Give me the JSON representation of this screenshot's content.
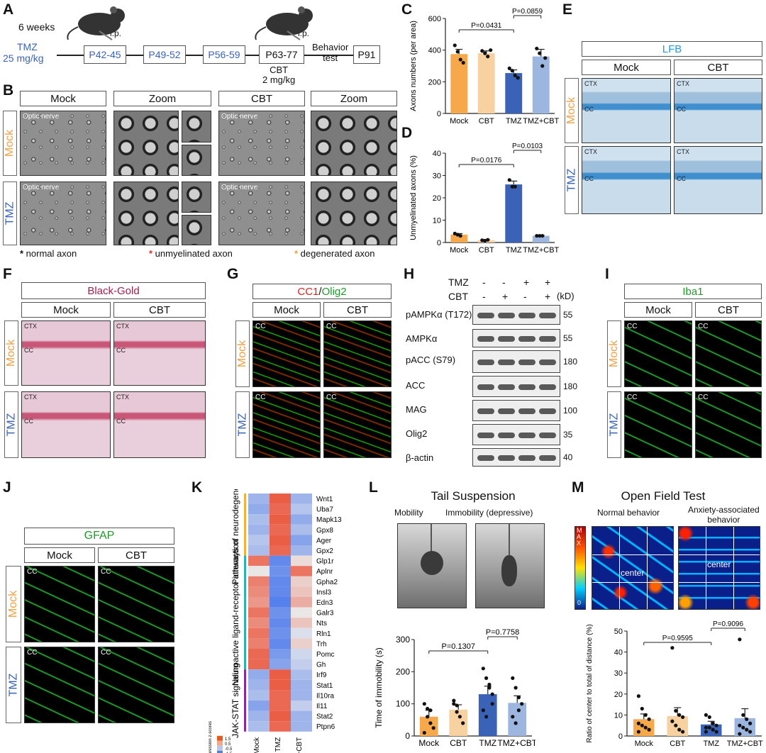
{
  "panels": {
    "A": "A",
    "B": "B",
    "C": "C",
    "D": "D",
    "E": "E",
    "F": "F",
    "G": "G",
    "H": "H",
    "I": "I",
    "J": "J",
    "K": "K",
    "L": "L",
    "M": "M"
  },
  "A": {
    "weeks": "6 weeks",
    "drug": "TMZ",
    "dose": "25 mg/kg",
    "ip1": "i.p.",
    "ip2": "i.p.",
    "periods": [
      "P42-45",
      "P49-52",
      "P56-59",
      "P63-77",
      "P91"
    ],
    "behavior": [
      "Behavior",
      "test"
    ],
    "cbt": [
      "CBT",
      "2 mg/kg"
    ]
  },
  "B": {
    "headers": [
      "Mock",
      "Zoom",
      "CBT",
      "Zoom"
    ],
    "rows": [
      "Mock",
      "TMZ"
    ],
    "optic": "Optic nerve",
    "legend": [
      "normal axon",
      "unmyelinated axon",
      "degenerated axon"
    ]
  },
  "C": {
    "chart_data": {
      "type": "bar",
      "categories": [
        "Mock",
        "CBT",
        "TMZ",
        "TMZ+CBT"
      ],
      "values": [
        375,
        380,
        255,
        360
      ],
      "errors": [
        30,
        15,
        20,
        45
      ],
      "points": [
        [
          430,
          390,
          340,
          320
        ],
        [
          395,
          380,
          360,
          400
        ],
        [
          285,
          270,
          240,
          225
        ],
        [
          410,
          380,
          300,
          350
        ]
      ],
      "ylabel": "Axons numbers (per area)",
      "ylim": [
        0,
        600
      ],
      "yticks": [
        "0",
        "200",
        "400",
        "600"
      ],
      "colors": [
        "#f7a84b",
        "#f7d2a0",
        "#3a63b8",
        "#9cb6e0"
      ],
      "pvalues": [
        {
          "from": 0,
          "to": 2,
          "text": "P=0.0431"
        },
        {
          "from": 2,
          "to": 3,
          "text": "P=0.0859"
        }
      ]
    }
  },
  "D": {
    "chart_data": {
      "type": "bar",
      "categories": [
        "Mock",
        "CBT",
        "TMZ",
        "TMZ+CBT"
      ],
      "values": [
        3.5,
        1,
        26,
        3
      ],
      "errors": [
        0.5,
        0.3,
        1.5,
        0.2
      ],
      "points": [
        [
          4,
          3.5,
          3
        ],
        [
          1,
          0.8,
          1.2
        ],
        [
          28,
          25,
          25
        ],
        [
          3,
          3,
          3
        ]
      ],
      "ylabel": "Unmyelinated axons (%)",
      "ylim": [
        0,
        40
      ],
      "yticks": [
        "0",
        "10",
        "20",
        "30",
        "40"
      ],
      "colors": [
        "#f7a84b",
        "#f7d2a0",
        "#3a63b8",
        "#9cb6e0"
      ],
      "pvalues": [
        {
          "from": 0,
          "to": 2,
          "text": "P=0.0176"
        },
        {
          "from": 2,
          "to": 3,
          "text": "P=0.0103"
        }
      ]
    }
  },
  "E": {
    "stain": "LFB",
    "cols": [
      "Mock",
      "CBT"
    ],
    "rows": [
      "Mock",
      "TMZ"
    ],
    "ctx": "CTX",
    "cc": "CC"
  },
  "F": {
    "stain": "Black-Gold",
    "cols": [
      "Mock",
      "CBT"
    ],
    "rows": [
      "Mock",
      "TMZ"
    ],
    "ctx": "CTX",
    "cc": "CC"
  },
  "G": {
    "stain_a": "CC1",
    "sep": "/",
    "stain_b": "Olig2",
    "cols": [
      "Mock",
      "CBT"
    ],
    "rows": [
      "Mock",
      "TMZ"
    ],
    "cc": "CC"
  },
  "H": {
    "tmz_label": "TMZ",
    "cbt_label": "CBT",
    "tmz_signs": [
      "-",
      "-",
      "+",
      "+"
    ],
    "cbt_signs": [
      "-",
      "+",
      "-",
      "+"
    ],
    "kd": "(kD)",
    "bands": [
      {
        "name": "pAMPKα (T172)",
        "kd": "55"
      },
      {
        "name": "AMPKα",
        "kd": "55"
      },
      {
        "name": "pACC (S79)",
        "kd": "180"
      },
      {
        "name": "ACC",
        "kd": "180"
      },
      {
        "name": "MAG",
        "kd": "100"
      },
      {
        "name": "Olig2",
        "kd": "35"
      },
      {
        "name": "β-actin",
        "kd": "40"
      }
    ]
  },
  "I": {
    "stain": "Iba1",
    "cols": [
      "Mock",
      "CBT"
    ],
    "rows": [
      "Mock",
      "TMZ"
    ],
    "cc": "CC"
  },
  "J": {
    "stain": "GFAP",
    "cols": [
      "Mock",
      "CBT"
    ],
    "rows": [
      "Mock",
      "TMZ"
    ],
    "cc": "CC"
  },
  "K": {
    "groups": [
      "Pathways of neurodegeneration",
      "Neuroactive ligand-receptor interaction",
      "JAK-STAT signaling"
    ],
    "genes": [
      "Wnt1",
      "Uba7",
      "Mapk13",
      "Gpx8",
      "Ager",
      "Gpx2",
      "Glp1r",
      "Aplnr",
      "Gpha2",
      "Insl3",
      "Edn3",
      "Galr3",
      "Nts",
      "Rln1",
      "Trh",
      "Pomc",
      "Gh",
      "Irf9",
      "Stat1",
      "Il10ra",
      "Il11",
      "Stat2",
      "Ptpn6"
    ],
    "columns": [
      "Mock",
      "TMZ",
      "TMZ+CBT"
    ],
    "legend_title": "Gene expression z-scores",
    "legend_ticks": [
      "1.5",
      "0.5",
      "-0.5",
      "-1.5"
    ],
    "chart_data": {
      "type": "heatmap",
      "rows": [
        "Wnt1",
        "Uba7",
        "Mapk13",
        "Gpx8",
        "Ager",
        "Gpx2",
        "Glp1r",
        "Aplnr",
        "Gpha2",
        "Insl3",
        "Edn3",
        "Galr3",
        "Nts",
        "Rln1",
        "Trh",
        "Pomc",
        "Gh",
        "Irf9",
        "Stat1",
        "Il10ra",
        "Il11",
        "Stat2",
        "Ptpn6"
      ],
      "cols": [
        "Mock",
        "TMZ",
        "TMZ+CBT"
      ],
      "values": [
        [
          -0.6,
          1.2,
          -0.6
        ],
        [
          -0.7,
          1.1,
          -0.4
        ],
        [
          -0.5,
          1.2,
          -0.7
        ],
        [
          -0.6,
          1.1,
          -0.5
        ],
        [
          -0.4,
          1.2,
          -0.8
        ],
        [
          -0.5,
          1.1,
          -0.6
        ],
        [
          1.0,
          -1.1,
          0.1
        ],
        [
          0.0,
          -1.0,
          1.0
        ],
        [
          0.9,
          -1.1,
          0.2
        ],
        [
          0.8,
          -1.1,
          0.3
        ],
        [
          0.7,
          -1.2,
          0.5
        ],
        [
          1.0,
          -1.0,
          0.0
        ],
        [
          0.8,
          -1.1,
          0.3
        ],
        [
          1.0,
          -1.0,
          -0.1
        ],
        [
          0.9,
          -1.1,
          0.2
        ],
        [
          1.1,
          -0.9,
          -0.2
        ],
        [
          1.1,
          -0.8,
          -0.3
        ],
        [
          -0.7,
          1.2,
          -0.5
        ],
        [
          -0.6,
          1.2,
          -0.6
        ],
        [
          -0.5,
          1.1,
          -0.6
        ],
        [
          -0.8,
          1.1,
          -0.3
        ],
        [
          -0.6,
          1.2,
          -0.6
        ],
        [
          -0.5,
          1.1,
          -0.6
        ]
      ]
    }
  },
  "L": {
    "title": "Tail Suspension",
    "mobility": "Mobility",
    "immobility": "Immobility (depressive)",
    "chart_data": {
      "type": "bar",
      "categories": [
        "Mock",
        "CBT",
        "TMZ",
        "TMZ+CBT"
      ],
      "values": [
        60,
        82,
        130,
        103
      ],
      "errors": [
        20,
        15,
        25,
        22
      ],
      "points": [
        [
          100,
          85,
          40,
          25,
          10,
          60,
          80
        ],
        [
          110,
          95,
          60,
          40,
          100,
          75
        ],
        [
          210,
          180,
          160,
          130,
          80,
          60,
          150,
          100
        ],
        [
          180,
          150,
          120,
          100,
          60,
          40,
          80
        ]
      ],
      "ylabel": "Time of immobility (s)",
      "ylim": [
        0,
        300
      ],
      "yticks": [
        "0",
        "100",
        "200",
        "300"
      ],
      "colors": [
        "#f7a84b",
        "#f7d2a0",
        "#3a63b8",
        "#9cb6e0"
      ],
      "pvalues": [
        {
          "from": 0,
          "to": 2,
          "text": "P=0.1307"
        },
        {
          "from": 2,
          "to": 3,
          "text": "P=0.7758"
        }
      ]
    }
  },
  "M": {
    "title": "Open Field Test",
    "normal": "Normal behavior",
    "anxiety": [
      "Anxiety-associated",
      "behavior"
    ],
    "center": "center",
    "scale_max": "MAX",
    "scale_min": "0",
    "chart_data": {
      "type": "bar",
      "categories": [
        "Mock",
        "CBT",
        "TMZ",
        "TMZ+CBT"
      ],
      "values": [
        8,
        9.5,
        5.5,
        8.5
      ],
      "errors": [
        2.5,
        4,
        1.5,
        4.5
      ],
      "points": [
        [
          19,
          13,
          10,
          8,
          6,
          5,
          4,
          3,
          2
        ],
        [
          42,
          12,
          10,
          9,
          7,
          5,
          3,
          2
        ],
        [
          10,
          9,
          6,
          5,
          4,
          4,
          3,
          2,
          2
        ],
        [
          46,
          10,
          8,
          6,
          5,
          4,
          3,
          2,
          1
        ]
      ],
      "ylabel": "Ratio of center to total of distance (%)",
      "ylim": [
        0,
        50
      ],
      "yticks": [
        "0",
        "10",
        "20",
        "30",
        "40",
        "50"
      ],
      "colors": [
        "#f7a84b",
        "#f7d2a0",
        "#3a63b8",
        "#9cb6e0"
      ],
      "pvalues": [
        {
          "from": 0,
          "to": 2,
          "text": "P=0.9595"
        },
        {
          "from": 2,
          "to": 3,
          "text": "P=0.9096"
        }
      ]
    }
  }
}
